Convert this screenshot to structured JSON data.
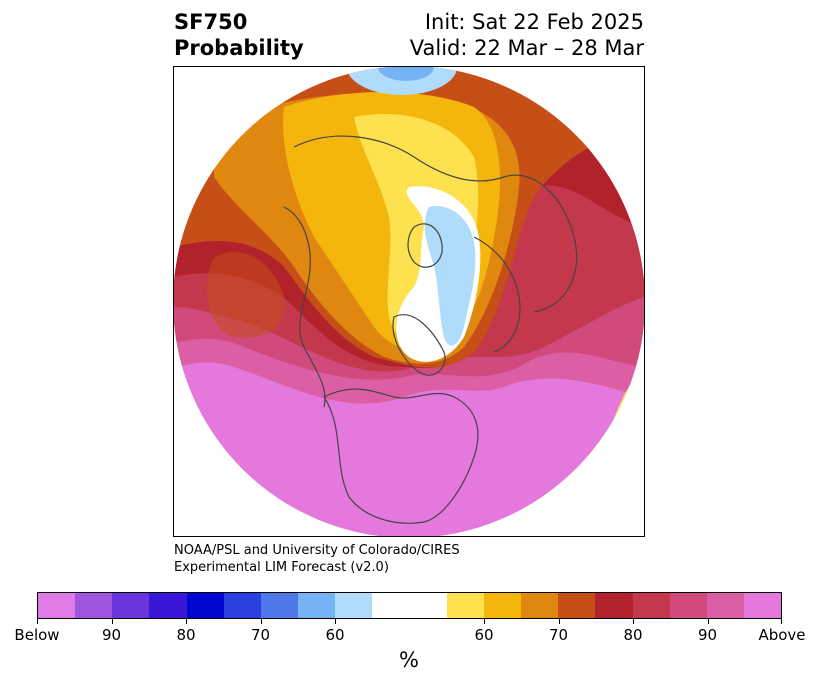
{
  "header": {
    "product": "SF750",
    "metric": "Probability",
    "init": "Init: Sat 22 Feb 2025",
    "valid": "Valid: 22 Mar – 28 Mar"
  },
  "credit": {
    "line1": "NOAA/PSL and University of Colorado/CIRES",
    "line2": "Experimental LIM Forecast (v2.0)"
  },
  "colorbar": {
    "unit": "%",
    "colors": [
      "#e07ae6",
      "#9f55e0",
      "#6a35dd",
      "#3a17d8",
      "#0008d0",
      "#2a41df",
      "#4f79ea",
      "#76b3f5",
      "#b0dcfb",
      "#ffffff",
      "#ffffff",
      "#fde14f",
      "#f4b60c",
      "#e0870f",
      "#c64f17",
      "#b1222a",
      "#c4384e",
      "#d04a7e",
      "#dc5fa6",
      "#e578dc"
    ],
    "tick_labels": [
      "Below",
      "90",
      "80",
      "70",
      "60",
      "60",
      "70",
      "80",
      "90",
      "Above"
    ]
  },
  "map": {
    "projection": "polar-stereographic-north",
    "palette": {
      "above_light_yellow": "#fde14f",
      "above_orange": "#f4b60c",
      "above_dark_orange": "#e0870f",
      "above_rust": "#c64f17",
      "above_red": "#b1222a",
      "above_crimson": "#c4384e",
      "above_rose": "#d04a7e",
      "above_pink": "#dc5fa6",
      "above_magenta": "#e578dc",
      "below_light_blue": "#b0dcfb",
      "below_blue": "#76b3f5",
      "coastline": "#444444"
    }
  }
}
